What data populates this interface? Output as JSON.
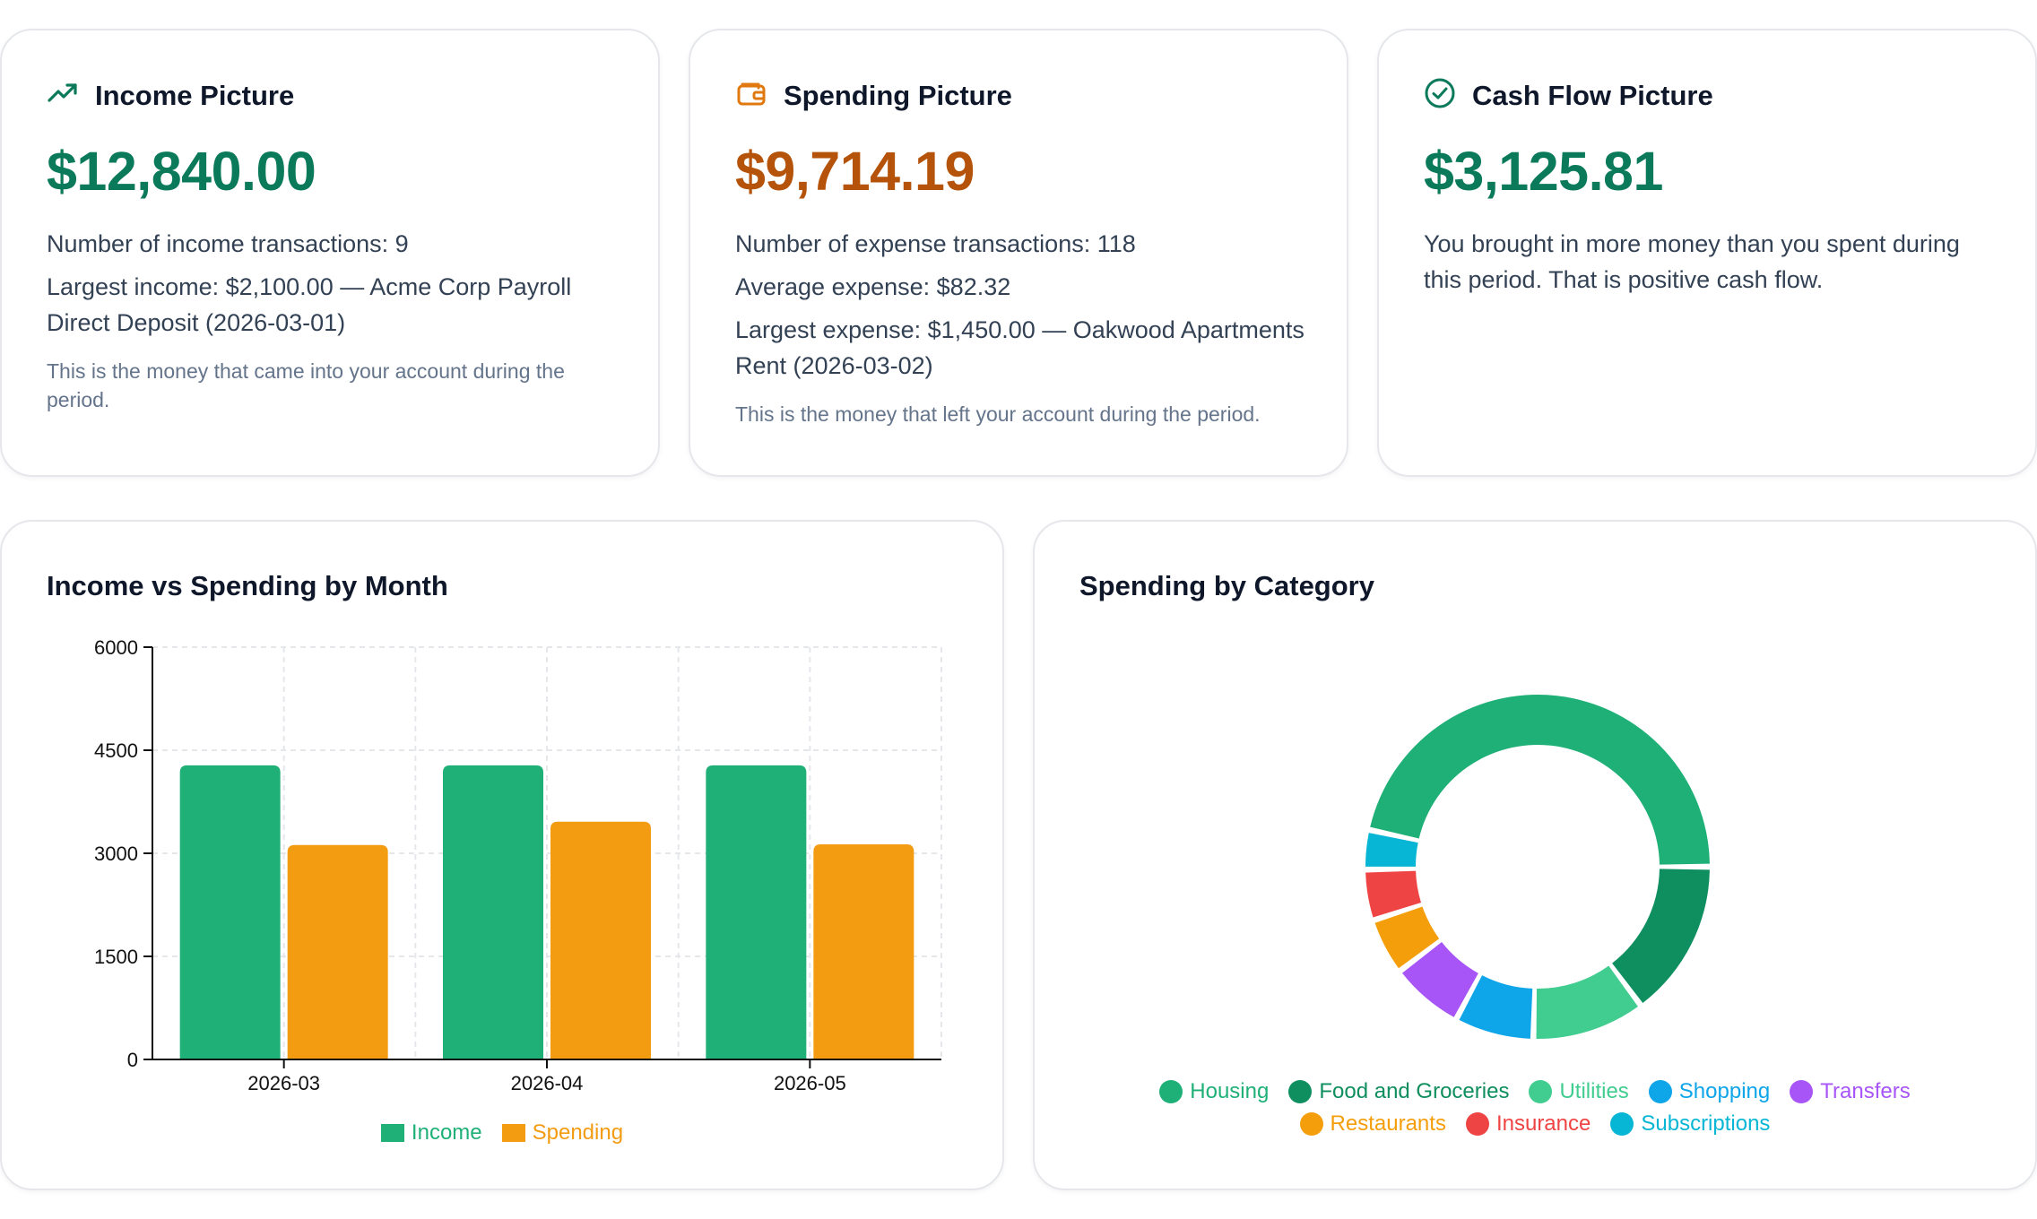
{
  "summary": {
    "income": {
      "title": "Income Picture",
      "icon": "trending-up-icon",
      "amount": "$12,840.00",
      "amount_color": "#0b7a5a",
      "stats": [
        "Number of income transactions: 9",
        "Largest income: $2,100.00 — Acme Corp Payroll Direct Deposit (2026-03-01)"
      ],
      "note": "This is the money that came into your account during the period."
    },
    "spending": {
      "title": "Spending Picture",
      "icon": "wallet-icon",
      "amount": "$9,714.19",
      "amount_color": "#b45309",
      "stats": [
        "Number of expense transactions: 118",
        "Average expense: $82.32",
        "Largest expense: $1,450.00 — Oakwood Apartments Rent (2026-03-02)"
      ],
      "note": "This is the money that left your account during the period."
    },
    "cashflow": {
      "title": "Cash Flow Picture",
      "icon": "check-circle-icon",
      "amount": "$3,125.81",
      "amount_color": "#0b7a5a",
      "stats": [
        "You brought in more money than you spent during this period. That is positive cash flow."
      ]
    }
  },
  "bar_chart": {
    "title": "Income vs Spending by Month"
  },
  "donut_chart": {
    "title": "Spending by Category"
  },
  "chart_data": [
    {
      "type": "bar",
      "title": "Income vs Spending by Month",
      "categories": [
        "2026-03",
        "2026-04",
        "2026-05"
      ],
      "series": [
        {
          "name": "Income",
          "values": [
            4280,
            4280,
            4280
          ],
          "color": "#1fb077"
        },
        {
          "name": "Spending",
          "values": [
            3120,
            3460,
            3130
          ],
          "color": "#f39c12"
        }
      ],
      "yticks": [
        "0",
        "1500",
        "3000",
        "4500",
        "6000"
      ],
      "ylim": [
        0,
        6000
      ],
      "grid": true,
      "legend": "bottom"
    },
    {
      "type": "pie",
      "title": "Spending by Category",
      "donut": true,
      "legend": "bottom",
      "slices": [
        {
          "name": "Housing",
          "value": 44.0,
          "color": "#1fb077"
        },
        {
          "name": "Food and Groceries",
          "value": 14.0,
          "color": "#0f8f5f"
        },
        {
          "name": "Utilities",
          "value": 10.0,
          "color": "#41cc90"
        },
        {
          "name": "Shopping",
          "value": 7.0,
          "color": "#0ea5e9"
        },
        {
          "name": "Transfers",
          "value": 6.5,
          "color": "#a855f7"
        },
        {
          "name": "Restaurants",
          "value": 5.0,
          "color": "#f59e0b"
        },
        {
          "name": "Insurance",
          "value": 4.5,
          "color": "#ef4444"
        },
        {
          "name": "Subscriptions",
          "value": 3.5,
          "color": "#06b6d4"
        }
      ]
    }
  ]
}
